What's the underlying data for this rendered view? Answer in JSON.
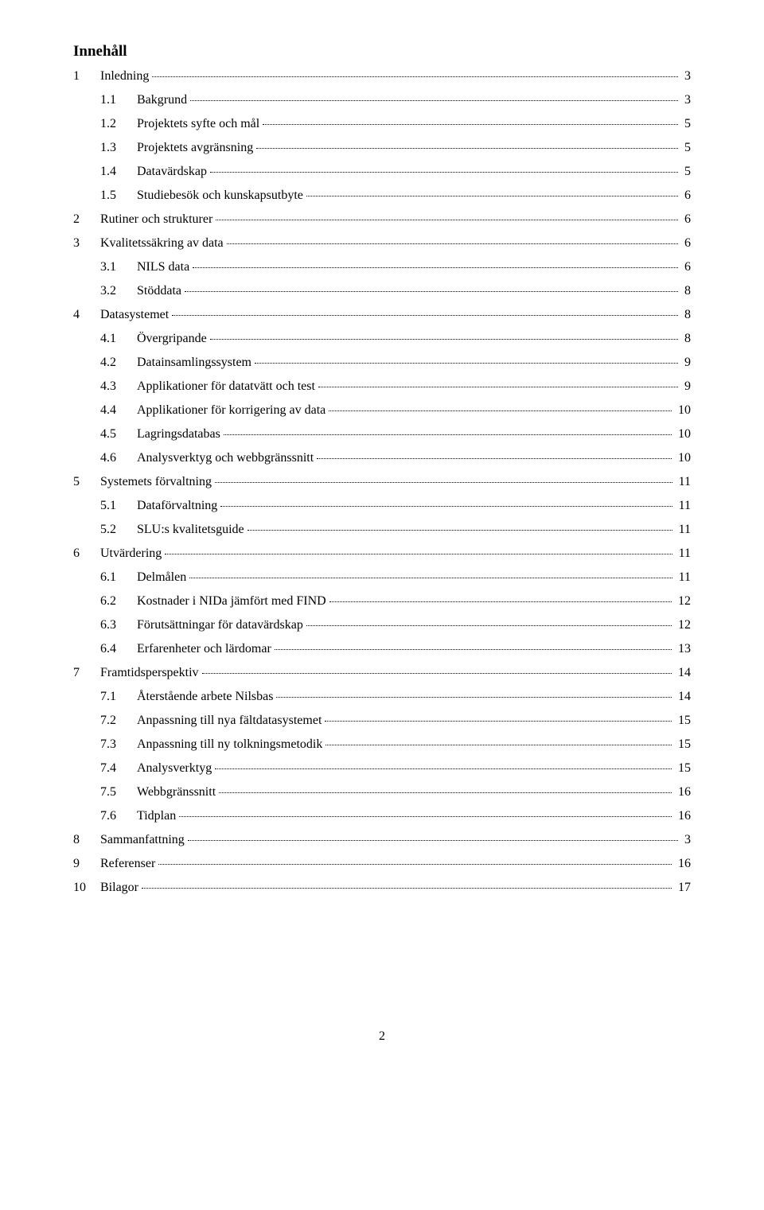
{
  "title": "Innehåll",
  "entries": [
    {
      "level": 1,
      "num": "1",
      "label": "Inledning",
      "page": "3"
    },
    {
      "level": 2,
      "num": "1.1",
      "label": "Bakgrund",
      "page": "3"
    },
    {
      "level": 2,
      "num": "1.2",
      "label": "Projektets syfte och mål",
      "page": "5"
    },
    {
      "level": 2,
      "num": "1.3",
      "label": "Projektets avgränsning",
      "page": "5"
    },
    {
      "level": 2,
      "num": "1.4",
      "label": "Datavärdskap",
      "page": "5"
    },
    {
      "level": 2,
      "num": "1.5",
      "label": "Studiebesök och kunskapsutbyte",
      "page": "6"
    },
    {
      "level": 1,
      "num": "2",
      "label": "Rutiner och strukturer",
      "page": "6"
    },
    {
      "level": 1,
      "num": "3",
      "label": "Kvalitetssäkring av data",
      "page": "6"
    },
    {
      "level": 2,
      "num": "3.1",
      "label": "NILS data",
      "page": "6"
    },
    {
      "level": 2,
      "num": "3.2",
      "label": "Stöddata",
      "page": "8"
    },
    {
      "level": 1,
      "num": "4",
      "label": "Datasystemet",
      "page": "8"
    },
    {
      "level": 2,
      "num": "4.1",
      "label": "Övergripande",
      "page": "8"
    },
    {
      "level": 2,
      "num": "4.2",
      "label": "Datainsamlingssystem",
      "page": "9"
    },
    {
      "level": 2,
      "num": "4.3",
      "label": "Applikationer för datatvätt och test",
      "page": "9"
    },
    {
      "level": 2,
      "num": "4.4",
      "label": "Applikationer för korrigering av data",
      "page": "10"
    },
    {
      "level": 2,
      "num": "4.5",
      "label": "Lagringsdatabas",
      "page": "10"
    },
    {
      "level": 2,
      "num": "4.6",
      "label": "Analysverktyg och webbgränssnitt",
      "page": "10"
    },
    {
      "level": 1,
      "num": "5",
      "label": "Systemets förvaltning",
      "page": "11"
    },
    {
      "level": 2,
      "num": "5.1",
      "label": "Dataförvaltning",
      "page": "11"
    },
    {
      "level": 2,
      "num": "5.2",
      "label": "SLU:s kvalitetsguide",
      "page": "11"
    },
    {
      "level": 1,
      "num": "6",
      "label": "Utvärdering",
      "page": "11"
    },
    {
      "level": 2,
      "num": "6.1",
      "label": "Delmålen",
      "page": "11"
    },
    {
      "level": 2,
      "num": "6.2",
      "label": "Kostnader i NIDa jämfört med FIND",
      "page": "12"
    },
    {
      "level": 2,
      "num": "6.3",
      "label": "Förutsättningar för datavärdskap",
      "page": "12"
    },
    {
      "level": 2,
      "num": "6.4",
      "label": "Erfarenheter och lärdomar",
      "page": "13"
    },
    {
      "level": 1,
      "num": "7",
      "label": "Framtidsperspektiv",
      "page": "14"
    },
    {
      "level": 2,
      "num": "7.1",
      "label": "Återstående arbete Nilsbas",
      "page": "14"
    },
    {
      "level": 2,
      "num": "7.2",
      "label": "Anpassning till nya fältdatasystemet",
      "page": "15"
    },
    {
      "level": 2,
      "num": "7.3",
      "label": "Anpassning till ny tolkningsmetodik",
      "page": "15"
    },
    {
      "level": 2,
      "num": "7.4",
      "label": "Analysverktyg",
      "page": "15"
    },
    {
      "level": 2,
      "num": "7.5",
      "label": "Webbgränssnitt",
      "page": "16"
    },
    {
      "level": 2,
      "num": "7.6",
      "label": "Tidplan",
      "page": "16"
    },
    {
      "level": 1,
      "num": "8",
      "label": "Sammanfattning",
      "page": "3"
    },
    {
      "level": 1,
      "num": "9",
      "label": "Referenser",
      "page": "16"
    },
    {
      "level": 1,
      "num": "10",
      "label": "Bilagor",
      "page": "17"
    }
  ],
  "footer_page": "2"
}
